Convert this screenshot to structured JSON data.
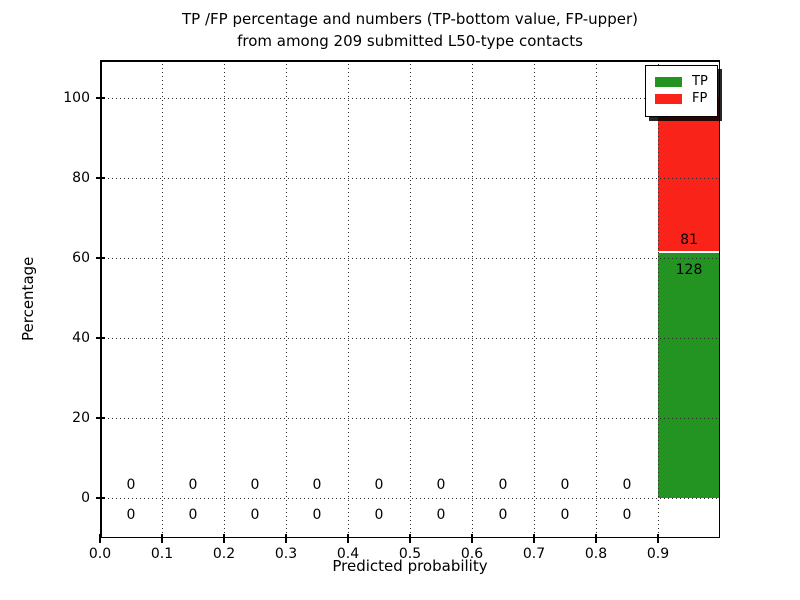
{
  "chart_data": {
    "type": "bar",
    "stacked": true,
    "title": "TP /FP percentage and numbers (TP-bottom value, FP-upper)",
    "subtitle": "from among 209 submitted L50-type contacts",
    "xlabel": "Predicted probability",
    "ylabel": "Percentage",
    "total_contacts": 209,
    "xlim": [
      0.0,
      1.0
    ],
    "ylim": [
      -10,
      109.5
    ],
    "bin_width": 0.1,
    "x_tick_values": [
      0.0,
      0.1,
      0.2,
      0.3,
      0.4,
      0.5,
      0.6,
      0.7,
      0.8,
      0.9
    ],
    "x_tick_labels": [
      "0.0",
      "0.1",
      "0.2",
      "0.3",
      "0.4",
      "0.5",
      "0.6",
      "0.7",
      "0.8",
      "0.9"
    ],
    "y_tick_values": [
      0,
      20,
      40,
      60,
      80,
      100
    ],
    "y_tick_labels": [
      "0",
      "20",
      "40",
      "60",
      "80",
      "100"
    ],
    "grid": "dotted",
    "legend_position": "upper right",
    "series": [
      {
        "name": "TP",
        "color": "#239422",
        "counts": [
          0,
          0,
          0,
          0,
          0,
          0,
          0,
          0,
          0,
          128
        ],
        "percentages": [
          0,
          0,
          0,
          0,
          0,
          0,
          0,
          0,
          0,
          61.2
        ]
      },
      {
        "name": "FP",
        "color": "#fa2319",
        "counts": [
          0,
          0,
          0,
          0,
          0,
          0,
          0,
          0,
          0,
          81
        ],
        "percentages": [
          0,
          0,
          0,
          0,
          0,
          0,
          0,
          0,
          0,
          38.8
        ]
      }
    ]
  }
}
